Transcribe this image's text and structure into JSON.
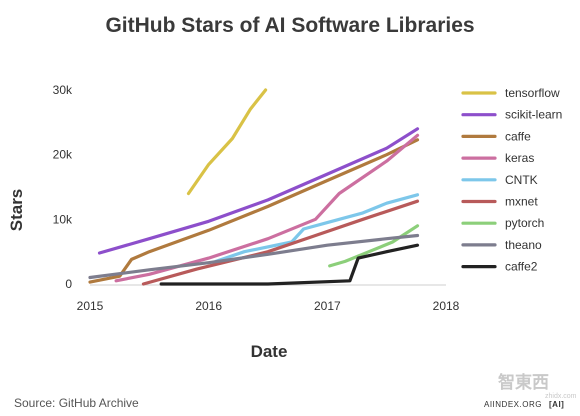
{
  "chart_data": {
    "type": "line",
    "title": "GitHub Stars of AI Software Libraries",
    "xlabel": "Date",
    "ylabel": "Stars",
    "xlim": [
      2015,
      2018
    ],
    "ylim": [
      0,
      30000
    ],
    "x_ticks": [
      {
        "value": 2015,
        "label": "2015"
      },
      {
        "value": 2016,
        "label": "2016"
      },
      {
        "value": 2017,
        "label": "2017"
      },
      {
        "value": 2018,
        "label": "2018"
      }
    ],
    "y_ticks": [
      {
        "value": 0,
        "label": "0"
      },
      {
        "value": 10000,
        "label": "10k"
      },
      {
        "value": 20000,
        "label": "20k"
      },
      {
        "value": 30000,
        "label": "30k"
      }
    ],
    "grid": false,
    "legend_position": "right",
    "series": [
      {
        "name": "tensorflow",
        "color": "#d9c246",
        "x": [
          2015.83,
          2016.0,
          2016.2,
          2016.35,
          2016.48
        ],
        "y": [
          14000,
          18500,
          22500,
          27000,
          30000
        ]
      },
      {
        "name": "scikit-learn",
        "color": "#8d4fcb",
        "x": [
          2015.08,
          2015.5,
          2016.0,
          2016.5,
          2017.0,
          2017.5,
          2017.76
        ],
        "y": [
          4800,
          7000,
          9700,
          13000,
          17000,
          21000,
          24000
        ]
      },
      {
        "name": "caffe",
        "color": "#b07a3e",
        "x": [
          2015.0,
          2015.25,
          2015.35,
          2015.5,
          2016.0,
          2016.5,
          2017.0,
          2017.5,
          2017.76
        ],
        "y": [
          300,
          1200,
          3800,
          5000,
          8300,
          12000,
          16000,
          20000,
          22300
        ]
      },
      {
        "name": "keras",
        "color": "#cc6fa0",
        "x": [
          2015.22,
          2015.5,
          2016.0,
          2016.5,
          2016.9,
          2017.1,
          2017.5,
          2017.76
        ],
        "y": [
          500,
          1500,
          4000,
          7000,
          10000,
          14000,
          19000,
          23000
        ]
      },
      {
        "name": "CNTK",
        "color": "#7dc7ea",
        "x": [
          2016.06,
          2016.3,
          2016.7,
          2016.8,
          2017.0,
          2017.3,
          2017.5,
          2017.76
        ],
        "y": [
          3500,
          5000,
          6500,
          8500,
          9500,
          11000,
          12500,
          13800
        ]
      },
      {
        "name": "mxnet",
        "color": "#b85a5a",
        "x": [
          2015.45,
          2015.9,
          2016.5,
          2016.9,
          2017.3,
          2017.76
        ],
        "y": [
          0,
          2300,
          5000,
          7500,
          10000,
          12800
        ]
      },
      {
        "name": "pytorch",
        "color": "#8ccf7a",
        "x": [
          2017.02,
          2017.15,
          2017.35,
          2017.55,
          2017.76
        ],
        "y": [
          2800,
          3500,
          5000,
          6500,
          9000
        ]
      },
      {
        "name": "theano",
        "color": "#7d7d8e",
        "x": [
          2015.0,
          2015.5,
          2016.0,
          2016.5,
          2017.0,
          2017.5,
          2017.76
        ],
        "y": [
          1000,
          2200,
          3300,
          4600,
          6000,
          7000,
          7500
        ]
      },
      {
        "name": "caffe2",
        "color": "#222222",
        "x": [
          2015.6,
          2016.5,
          2017.19,
          2017.26,
          2017.5,
          2017.76
        ],
        "y": [
          0,
          0,
          500,
          4000,
          5000,
          6000
        ]
      }
    ]
  },
  "footer": {
    "source": "Source: GitHub Archive",
    "brand": "AIINDEX.ORG",
    "brand_logo": "[AI]",
    "watermark": "智東西",
    "watermark_sub": "zhidx.com"
  }
}
